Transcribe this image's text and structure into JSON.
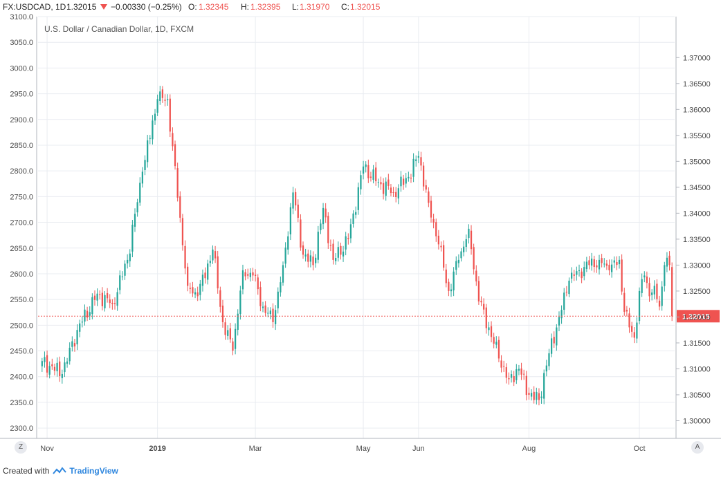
{
  "header": {
    "symbol": "FX:USDCAD, 1D",
    "last": "1.32015",
    "change": "−0.00330 (−0.25%)",
    "open_label": "O:",
    "open": "1.32345",
    "high_label": "H:",
    "high": "1.32395",
    "low_label": "L:",
    "low": "1.31970",
    "close_label": "C:",
    "close": "1.32015",
    "down_arrow_icon": "triangle-down-icon"
  },
  "footer": {
    "created_with": "Created with",
    "brand": "TradingView",
    "logo_icon": "tradingview-logo-icon"
  },
  "buttons": {
    "left_corner": "Z",
    "right_corner": "A"
  },
  "colors": {
    "up": "#26a69a",
    "down": "#ef5350",
    "price_line": "#ef5350",
    "grid": "#e9ecf1",
    "axis": "#4a4a4a"
  },
  "chart_data": {
    "type": "candlestick",
    "title": "U.S. Dollar / Canadian Dollar, 1D, FXCM",
    "left_axis": {
      "ylim": [
        2280,
        3100
      ],
      "ticks": [
        "3100.0",
        "3050.0",
        "3000.0",
        "2950.0",
        "2900.0",
        "2850.0",
        "2800.0",
        "2750.0",
        "2700.0",
        "2650.0",
        "2600.0",
        "2550.0",
        "2500.0",
        "2450.0",
        "2400.0",
        "2350.0",
        "2300.0"
      ]
    },
    "right_axis": {
      "ylim": [
        1.2966,
        1.3779
      ],
      "ticks": [
        "1.37000",
        "1.36500",
        "1.36000",
        "1.35500",
        "1.35000",
        "1.34500",
        "1.34000",
        "1.33500",
        "1.33000",
        "1.32500",
        "1.32000",
        "1.31500",
        "1.31000",
        "1.30500",
        "1.30000"
      ],
      "last_price_label": "1.32015",
      "last_price": 1.32015
    },
    "x_axis": {
      "labels": [
        {
          "text": "Nov",
          "session": 2
        },
        {
          "text": "2019",
          "session": 46
        },
        {
          "text": "Mar",
          "session": 85
        },
        {
          "text": "May",
          "session": 128
        },
        {
          "text": "Jun",
          "session": 150
        },
        {
          "text": "Aug",
          "session": 194
        },
        {
          "text": "Oct",
          "session": 238
        }
      ]
    },
    "session_count": 252,
    "keypoints": [
      {
        "s": 0,
        "c": 1.3115
      },
      {
        "s": 8,
        "c": 1.309
      },
      {
        "s": 14,
        "c": 1.3175
      },
      {
        "s": 22,
        "c": 1.3245
      },
      {
        "s": 28,
        "c": 1.3225
      },
      {
        "s": 34,
        "c": 1.331
      },
      {
        "s": 40,
        "c": 1.348
      },
      {
        "s": 46,
        "c": 1.362
      },
      {
        "s": 50,
        "c": 1.362
      },
      {
        "s": 54,
        "c": 1.343
      },
      {
        "s": 58,
        "c": 1.326
      },
      {
        "s": 62,
        "c": 1.324
      },
      {
        "s": 68,
        "c": 1.333
      },
      {
        "s": 72,
        "c": 1.319
      },
      {
        "s": 76,
        "c": 1.3135
      },
      {
        "s": 80,
        "c": 1.329
      },
      {
        "s": 84,
        "c": 1.328
      },
      {
        "s": 88,
        "c": 1.322
      },
      {
        "s": 92,
        "c": 1.319
      },
      {
        "s": 96,
        "c": 1.33
      },
      {
        "s": 100,
        "c": 1.344
      },
      {
        "s": 104,
        "c": 1.332
      },
      {
        "s": 108,
        "c": 1.33
      },
      {
        "s": 112,
        "c": 1.341
      },
      {
        "s": 116,
        "c": 1.331
      },
      {
        "s": 122,
        "c": 1.335
      },
      {
        "s": 128,
        "c": 1.349
      },
      {
        "s": 134,
        "c": 1.346
      },
      {
        "s": 140,
        "c": 1.344
      },
      {
        "s": 146,
        "c": 1.347
      },
      {
        "s": 150,
        "c": 1.351
      },
      {
        "s": 154,
        "c": 1.342
      },
      {
        "s": 158,
        "c": 1.334
      },
      {
        "s": 162,
        "c": 1.325
      },
      {
        "s": 166,
        "c": 1.331
      },
      {
        "s": 170,
        "c": 1.337
      },
      {
        "s": 174,
        "c": 1.323
      },
      {
        "s": 178,
        "c": 1.318
      },
      {
        "s": 182,
        "c": 1.312
      },
      {
        "s": 186,
        "c": 1.308
      },
      {
        "s": 190,
        "c": 1.31
      },
      {
        "s": 194,
        "c": 1.305
      },
      {
        "s": 198,
        "c": 1.304
      },
      {
        "s": 202,
        "c": 1.313
      },
      {
        "s": 206,
        "c": 1.32
      },
      {
        "s": 210,
        "c": 1.327
      },
      {
        "s": 214,
        "c": 1.329
      },
      {
        "s": 218,
        "c": 1.33
      },
      {
        "s": 222,
        "c": 1.331
      },
      {
        "s": 226,
        "c": 1.329
      },
      {
        "s": 230,
        "c": 1.331
      },
      {
        "s": 232,
        "c": 1.321
      },
      {
        "s": 234,
        "c": 1.318
      },
      {
        "s": 236,
        "c": 1.316
      },
      {
        "s": 238,
        "c": 1.325
      },
      {
        "s": 240,
        "c": 1.328
      },
      {
        "s": 242,
        "c": 1.324
      },
      {
        "s": 244,
        "c": 1.326
      },
      {
        "s": 246,
        "c": 1.322
      },
      {
        "s": 248,
        "c": 1.33
      },
      {
        "s": 250,
        "c": 1.33
      },
      {
        "s": 251,
        "c": 1.32015
      }
    ]
  }
}
